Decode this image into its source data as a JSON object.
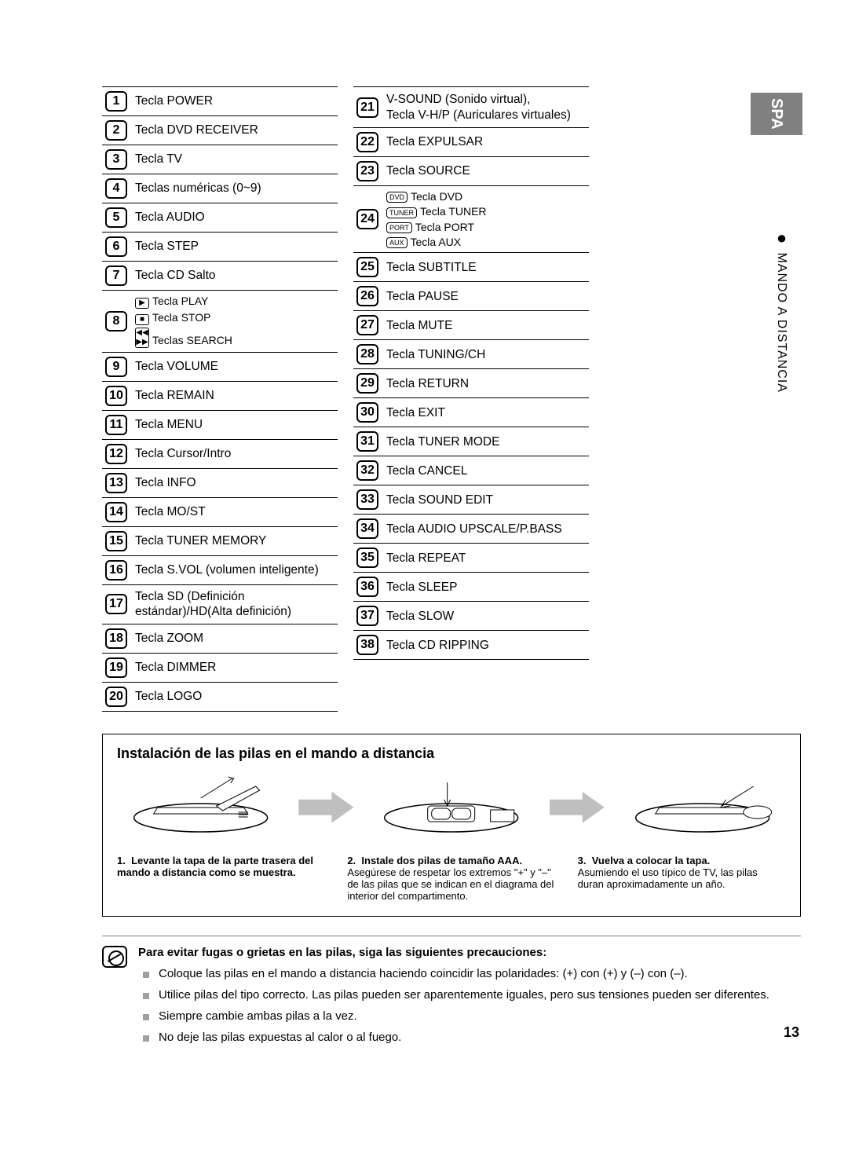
{
  "side_tab": "SPA",
  "side_section": "MANDO A DISTANCIA",
  "left_rows": [
    {
      "n": "1",
      "text": "Tecla POWER"
    },
    {
      "n": "2",
      "text": "Tecla DVD RECEIVER"
    },
    {
      "n": "3",
      "text": "Tecla TV"
    },
    {
      "n": "4",
      "text": "Teclas numéricas (0~9)"
    },
    {
      "n": "5",
      "text": "Tecla AUDIO"
    },
    {
      "n": "6",
      "text": "Tecla STEP"
    },
    {
      "n": "7",
      "text": "Tecla CD Salto"
    },
    {
      "n": "8",
      "sub": [
        {
          "icon": "▶",
          "label": "PLAY",
          "text": "Tecla PLAY"
        },
        {
          "icon": "■",
          "label": "STOP",
          "text": "Tecla STOP"
        },
        {
          "icon": "◀◀ ▶▶",
          "label": "",
          "text": "Teclas SEARCH"
        }
      ]
    },
    {
      "n": "9",
      "text": "Tecla VOLUME"
    },
    {
      "n": "10",
      "text": "Tecla REMAIN"
    },
    {
      "n": "11",
      "text": "Tecla MENU"
    },
    {
      "n": "12",
      "text": "Tecla Cursor/Intro"
    },
    {
      "n": "13",
      "text": "Tecla INFO"
    },
    {
      "n": "14",
      "text": "Tecla MO/ST"
    },
    {
      "n": "15",
      "text": "Tecla TUNER MEMORY"
    },
    {
      "n": "16",
      "text": "Tecla S.VOL (volumen inteligente)"
    },
    {
      "n": "17",
      "text": "Tecla SD (Definición estándar)/HD(Alta definición)"
    },
    {
      "n": "18",
      "text": "Tecla ZOOM"
    },
    {
      "n": "19",
      "text": "Tecla DIMMER"
    },
    {
      "n": "20",
      "text": "Tecla LOGO"
    }
  ],
  "right_rows": [
    {
      "n": "21",
      "text": "V-SOUND (Sonido virtual),\nTecla V-H/P (Auriculares virtuales)"
    },
    {
      "n": "22",
      "text": "Tecla EXPULSAR"
    },
    {
      "n": "23",
      "text": "Tecla SOURCE"
    },
    {
      "n": "24",
      "sub": [
        {
          "badge": "DVD",
          "text": "Tecla DVD"
        },
        {
          "badge": "TUNER",
          "text": "Tecla TUNER"
        },
        {
          "badge": "PORT",
          "text": "Tecla PORT"
        },
        {
          "badge": "AUX",
          "text": "Tecla AUX"
        }
      ]
    },
    {
      "n": "25",
      "text": "Tecla SUBTITLE"
    },
    {
      "n": "26",
      "text": "Tecla PAUSE"
    },
    {
      "n": "27",
      "text": "Tecla MUTE"
    },
    {
      "n": "28",
      "text": "Tecla TUNING/CH"
    },
    {
      "n": "29",
      "text": "Tecla RETURN"
    },
    {
      "n": "30",
      "text": "Tecla EXIT"
    },
    {
      "n": "31",
      "text": "Tecla TUNER MODE"
    },
    {
      "n": "32",
      "text": "Tecla CANCEL"
    },
    {
      "n": "33",
      "text": "Tecla SOUND EDIT"
    },
    {
      "n": "34",
      "text": "Tecla AUDIO UPSCALE/P.BASS"
    },
    {
      "n": "35",
      "text": "Tecla REPEAT"
    },
    {
      "n": "36",
      "text": "Tecla SLEEP"
    },
    {
      "n": "37",
      "text": "Tecla SLOW"
    },
    {
      "n": "38",
      "text": "Tecla CD RIPPING"
    }
  ],
  "install": {
    "title": "Instalación de las pilas en el mando a distancia",
    "steps": [
      {
        "num": "1.",
        "bold": "Levante la tapa de la parte trasera del mando a distancia como se muestra."
      },
      {
        "num": "2.",
        "bold": "Instale dos pilas de tamaño AAA.",
        "rest": "Asegúrese de respetar los extremos \"+\" y \"–\" de las pilas que se indican en el diagrama del interior del compartimento."
      },
      {
        "num": "3.",
        "bold": "Vuelva a colocar la tapa.",
        "rest": "Asumiendo el uso típico de TV, las pilas duran aproximadamente un año."
      }
    ]
  },
  "note": {
    "title": "Para evitar fugas o grietas en las pilas, siga las siguientes precauciones:",
    "items": [
      "Coloque las pilas en el mando a distancia haciendo coincidir las polaridades: (+) con (+) y (–) con (–).",
      "Utilice pilas del tipo correcto. Las pilas pueden ser aparentemente iguales, pero sus tensiones pueden ser diferentes.",
      "Siempre cambie ambas pilas a la vez.",
      "No deje las pilas expuestas al calor o al fuego."
    ]
  },
  "page_number": "13",
  "colors": {
    "tab_bg": "#808080",
    "arrow_bg": "#bfbfbf",
    "bullet": "#a0a0a0",
    "rule": "#000000",
    "note_rule": "#808080"
  }
}
